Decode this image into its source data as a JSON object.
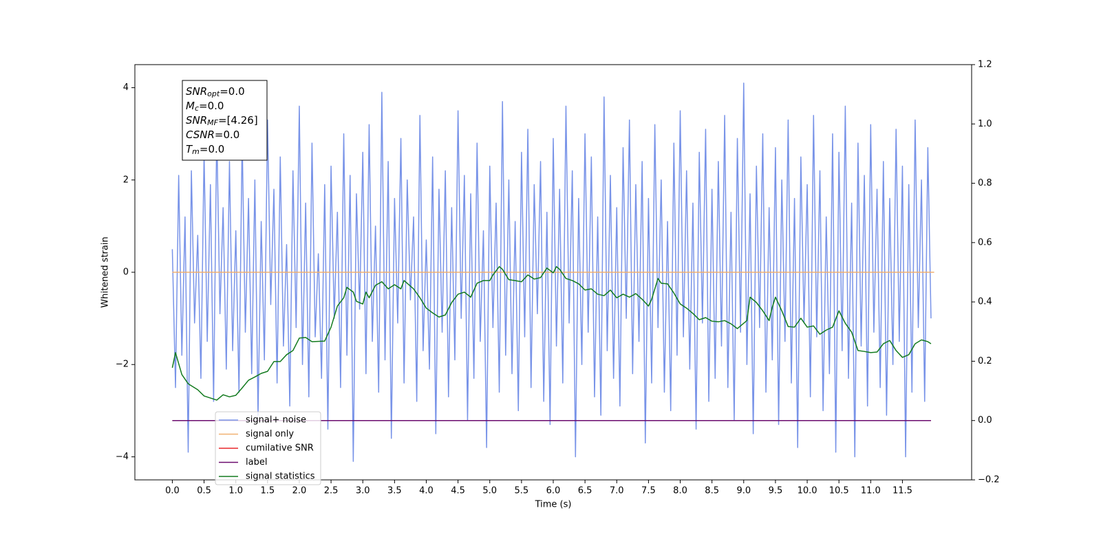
{
  "chart_data": {
    "type": "line",
    "xlabel": "Time (s)",
    "ylabel": "Whitened strain",
    "xlim": [
      -0.59,
      12.59
    ],
    "ylim": [
      -4.5,
      4.5
    ],
    "y2lim": [
      -0.2,
      1.2
    ],
    "xticks": [
      {
        "value": 0,
        "label": "0.0"
      },
      0.5,
      {
        "value": 1,
        "label": "1.0"
      },
      1.5,
      {
        "value": 2,
        "label": "2.0"
      },
      2.5,
      {
        "value": 3,
        "label": "3.0"
      },
      3.5,
      {
        "value": 4,
        "label": "4.0"
      },
      4.5,
      {
        "value": 5,
        "label": "5.0"
      },
      5.5,
      {
        "value": 6,
        "label": "6.0"
      },
      6.5,
      {
        "value": 7,
        "label": "7.0"
      },
      7.5,
      {
        "value": 8,
        "label": "8.0"
      },
      8.5,
      {
        "value": 9,
        "label": "9.0"
      },
      9.5,
      {
        "value": 10,
        "label": "10.0"
      },
      10.5,
      {
        "value": 11,
        "label": "11.0"
      },
      11.5
    ],
    "yticks": [
      {
        "value": -4,
        "label": "−4"
      },
      {
        "value": -2,
        "label": "−2"
      },
      0,
      2,
      4
    ],
    "y2ticks": [
      {
        "value": -0.2,
        "label": "−0.2"
      },
      {
        "value": 0,
        "label": "0.0"
      },
      0.2,
      0.4,
      0.6,
      0.8,
      {
        "value": 1,
        "label": "1.0"
      },
      1.2
    ],
    "legend": "lower left",
    "annotations": [
      {
        "base": "SNR",
        "sub": "opt",
        "rest": "=0.0"
      },
      {
        "base": "M",
        "sub": "c",
        "rest": "=0.0"
      },
      {
        "base": "SNR",
        "sub": "MF",
        "rest": "=[4.26]"
      },
      {
        "base": "CSNR",
        "sub": null,
        "rest": "=0.0"
      },
      {
        "base": "T",
        "sub": "m",
        "rest": "=0.0"
      }
    ],
    "series": [
      {
        "name": "signal+ noise",
        "color": "#7893e8",
        "axis": "y",
        "x": [
          0,
          0.05,
          0.1,
          0.15,
          0.2,
          0.25,
          0.3,
          0.35,
          0.4,
          0.45,
          0.5,
          0.55,
          0.6,
          0.65,
          0.7,
          0.75,
          0.8,
          0.85,
          0.9,
          0.95,
          1,
          1.05,
          1.1,
          1.15,
          1.2,
          1.25,
          1.3,
          1.35,
          1.4,
          1.45,
          1.5,
          1.55,
          1.6,
          1.65,
          1.7,
          1.75,
          1.8,
          1.85,
          1.9,
          1.95,
          2,
          2.05,
          2.1,
          2.15,
          2.2,
          2.25,
          2.3,
          2.35,
          2.4,
          2.45,
          2.5,
          2.55,
          2.6,
          2.65,
          2.7,
          2.75,
          2.8,
          2.85,
          2.9,
          2.95,
          3,
          3.05,
          3.1,
          3.15,
          3.2,
          3.25,
          3.3,
          3.35,
          3.4,
          3.45,
          3.5,
          3.55,
          3.6,
          3.65,
          3.7,
          3.75,
          3.8,
          3.85,
          3.9,
          3.95,
          4,
          4.05,
          4.1,
          4.15,
          4.2,
          4.25,
          4.3,
          4.35,
          4.4,
          4.45,
          4.5,
          4.55,
          4.6,
          4.65,
          4.7,
          4.75,
          4.8,
          4.85,
          4.9,
          4.95,
          5,
          5.05,
          5.1,
          5.15,
          5.2,
          5.25,
          5.3,
          5.35,
          5.4,
          5.45,
          5.5,
          5.55,
          5.6,
          5.65,
          5.7,
          5.75,
          5.8,
          5.85,
          5.9,
          5.95,
          6,
          6.05,
          6.1,
          6.15,
          6.2,
          6.25,
          6.3,
          6.35,
          6.4,
          6.45,
          6.5,
          6.55,
          6.6,
          6.65,
          6.7,
          6.75,
          6.8,
          6.85,
          6.9,
          6.95,
          7,
          7.05,
          7.1,
          7.15,
          7.2,
          7.25,
          7.3,
          7.35,
          7.4,
          7.45,
          7.5,
          7.55,
          7.6,
          7.65,
          7.7,
          7.75,
          7.8,
          7.85,
          7.9,
          7.95,
          8,
          8.05,
          8.1,
          8.15,
          8.2,
          8.25,
          8.3,
          8.35,
          8.4,
          8.45,
          8.5,
          8.55,
          8.6,
          8.65,
          8.7,
          8.75,
          8.8,
          8.85,
          8.9,
          8.95,
          9,
          9.05,
          9.1,
          9.15,
          9.2,
          9.25,
          9.3,
          9.35,
          9.4,
          9.45,
          9.5,
          9.55,
          9.6,
          9.65,
          9.7,
          9.75,
          9.8,
          9.85,
          9.9,
          9.95,
          10,
          10.05,
          10.1,
          10.15,
          10.2,
          10.25,
          10.3,
          10.35,
          10.4,
          10.45,
          10.5,
          10.55,
          10.6,
          10.65,
          10.7,
          10.75,
          10.8,
          10.85,
          10.9,
          10.95,
          11,
          11.05,
          11.1,
          11.15,
          11.2,
          11.25,
          11.3,
          11.35,
          11.4,
          11.45,
          11.5,
          11.55,
          11.6,
          11.65,
          11.7,
          11.75,
          11.8,
          11.85,
          11.9,
          11.95
        ],
        "values": [
          0.5,
          -2.5,
          2.1,
          -1.8,
          1.2,
          -3.9,
          2.2,
          -1.1,
          0.8,
          -2.3,
          2.6,
          -1.5,
          1.9,
          -2.8,
          3.1,
          -0.9,
          1.4,
          -2.1,
          2.4,
          -1.7,
          0.9,
          -2.6,
          2.9,
          -1.3,
          1.6,
          -2.2,
          2.0,
          -3.1,
          1.1,
          -1.9,
          3.3,
          -0.7,
          1.8,
          -2.4,
          2.5,
          -1.6,
          0.6,
          -2.9,
          2.2,
          -1.2,
          3.6,
          -2.0,
          1.5,
          -2.7,
          2.8,
          -1.4,
          0.4,
          -2.3,
          1.9,
          -3.4,
          2.3,
          -1.0,
          1.3,
          -2.5,
          3.0,
          -1.8,
          2.1,
          -4.1,
          1.7,
          -0.8,
          2.6,
          -2.2,
          3.2,
          -1.5,
          1.0,
          -2.6,
          3.9,
          -1.9,
          2.4,
          -3.6,
          1.6,
          -1.1,
          2.9,
          -2.4,
          2.0,
          -0.6,
          1.2,
          -2.8,
          3.4,
          -1.7,
          0.7,
          -2.1,
          2.5,
          -3.5,
          1.8,
          -1.3,
          2.2,
          -2.7,
          1.4,
          -1.9,
          3.5,
          -1.0,
          2.1,
          -3.2,
          1.7,
          -2.3,
          2.8,
          -1.5,
          0.9,
          -3.8,
          2.3,
          -1.2,
          1.5,
          -2.6,
          3.7,
          -1.8,
          2.0,
          -2.2,
          1.1,
          -3.0,
          2.6,
          -1.4,
          3.1,
          -2.5,
          1.9,
          -0.9,
          2.4,
          -2.8,
          1.3,
          -3.3,
          2.9,
          -1.6,
          1.8,
          -2.4,
          3.6,
          -1.1,
          2.2,
          -4.0,
          1.6,
          -2.0,
          3.0,
          -1.3,
          2.5,
          -2.7,
          1.2,
          -3.1,
          3.8,
          -1.7,
          2.1,
          -2.3,
          1.4,
          -2.9,
          2.7,
          -1.0,
          3.3,
          -2.2,
          1.9,
          -1.5,
          2.4,
          -3.7,
          1.6,
          -2.4,
          3.2,
          -1.2,
          2.0,
          -2.6,
          1.1,
          -3.0,
          2.8,
          -1.8,
          3.5,
          -1.4,
          2.2,
          -2.1,
          1.5,
          -3.4,
          2.6,
          -1.1,
          3.1,
          -2.8,
          1.8,
          -2.3,
          2.4,
          -1.6,
          3.4,
          -2.5,
          1.3,
          -3.2,
          2.9,
          -1.3,
          4.1,
          -2.0,
          1.7,
          -3.5,
          2.3,
          -1.2,
          3.0,
          -2.6,
          1.4,
          -1.9,
          2.7,
          -3.3,
          2.0,
          -1.5,
          3.3,
          -2.4,
          1.6,
          -3.8,
          2.5,
          -1.1,
          1.9,
          -2.7,
          3.4,
          -1.4,
          2.2,
          -3.0,
          1.2,
          -2.2,
          3.0,
          -3.9,
          2.6,
          -1.7,
          3.6,
          -2.3,
          1.5,
          -4.0,
          2.8,
          -1.6,
          2.1,
          -2.9,
          3.2,
          -1.3,
          1.8,
          -2.5,
          2.4,
          -3.1,
          1.6,
          -2.0,
          3.1,
          -1.5,
          2.3,
          -4.0,
          1.9,
          -2.6,
          3.3,
          -1.2,
          2.0,
          -2.8,
          2.7,
          -1.0
        ]
      },
      {
        "name": "signal only",
        "color": "#f0b070",
        "axis": "y",
        "x": [
          0,
          12
        ],
        "values": [
          0,
          0
        ]
      },
      {
        "name": "cumilative SNR",
        "color": "#e8262a",
        "axis": "y2",
        "x": [
          0,
          11.95
        ],
        "values": [
          0,
          0
        ]
      },
      {
        "name": "label",
        "color": "#6a0a6e",
        "axis": "y2",
        "x": [
          0,
          11.95
        ],
        "values": [
          0,
          0
        ]
      },
      {
        "name": "signal statistics",
        "color": "#127a1e",
        "axis": "y2",
        "x": [
          0,
          0.05,
          0.15,
          0.25,
          0.4,
          0.5,
          0.6,
          0.7,
          0.8,
          0.9,
          1,
          1.1,
          1.2,
          1.3,
          1.4,
          1.5,
          1.6,
          1.7,
          1.8,
          1.9,
          2,
          2.1,
          2.2,
          2.4,
          2.5,
          2.6,
          2.7,
          2.75,
          2.85,
          2.9,
          3,
          3.05,
          3.1,
          3.2,
          3.3,
          3.4,
          3.5,
          3.6,
          3.65,
          3.8,
          3.9,
          4,
          4.1,
          4.2,
          4.3,
          4.4,
          4.5,
          4.6,
          4.7,
          4.8,
          4.9,
          5,
          5.05,
          5.15,
          5.2,
          5.3,
          5.4,
          5.5,
          5.6,
          5.7,
          5.8,
          5.9,
          6,
          6.05,
          6.1,
          6.2,
          6.3,
          6.4,
          6.5,
          6.6,
          6.7,
          6.8,
          6.9,
          7,
          7.1,
          7.2,
          7.3,
          7.4,
          7.5,
          7.55,
          7.65,
          7.7,
          7.8,
          7.9,
          8,
          8.1,
          8.2,
          8.3,
          8.4,
          8.5,
          8.6,
          8.7,
          8.8,
          8.9,
          9,
          9.05,
          9.1,
          9.2,
          9.3,
          9.4,
          9.45,
          9.5,
          9.6,
          9.7,
          9.8,
          9.9,
          10,
          10.1,
          10.2,
          10.3,
          10.4,
          10.5,
          10.6,
          10.7,
          10.8,
          10.9,
          11,
          11.1,
          11.2,
          11.3,
          11.4,
          11.5,
          11.6,
          11.7,
          11.8,
          11.9,
          11.95
        ],
        "values": [
          0.178,
          0.229,
          0.155,
          0.124,
          0.104,
          0.083,
          0.076,
          0.069,
          0.087,
          0.08,
          0.085,
          0.11,
          0.136,
          0.147,
          0.159,
          0.166,
          0.199,
          0.199,
          0.222,
          0.236,
          0.278,
          0.28,
          0.266,
          0.268,
          0.315,
          0.386,
          0.414,
          0.449,
          0.433,
          0.402,
          0.393,
          0.433,
          0.414,
          0.456,
          0.468,
          0.444,
          0.458,
          0.444,
          0.472,
          0.444,
          0.414,
          0.379,
          0.363,
          0.349,
          0.356,
          0.398,
          0.426,
          0.433,
          0.416,
          0.463,
          0.472,
          0.472,
          0.491,
          0.519,
          0.51,
          0.475,
          0.472,
          0.468,
          0.491,
          0.477,
          0.482,
          0.514,
          0.498,
          0.519,
          0.51,
          0.479,
          0.472,
          0.461,
          0.44,
          0.444,
          0.426,
          0.421,
          0.44,
          0.414,
          0.426,
          0.416,
          0.428,
          0.409,
          0.386,
          0.409,
          0.479,
          0.463,
          0.461,
          0.43,
          0.393,
          0.379,
          0.361,
          0.34,
          0.347,
          0.335,
          0.333,
          0.337,
          0.326,
          0.31,
          0.328,
          0.337,
          0.416,
          0.398,
          0.37,
          0.337,
          0.382,
          0.416,
          0.37,
          0.317,
          0.315,
          0.345,
          0.315,
          0.319,
          0.291,
          0.305,
          0.315,
          0.37,
          0.328,
          0.298,
          0.236,
          0.233,
          0.229,
          0.231,
          0.259,
          0.27,
          0.236,
          0.213,
          0.222,
          0.259,
          0.272,
          0.266,
          0.259
        ]
      }
    ]
  }
}
